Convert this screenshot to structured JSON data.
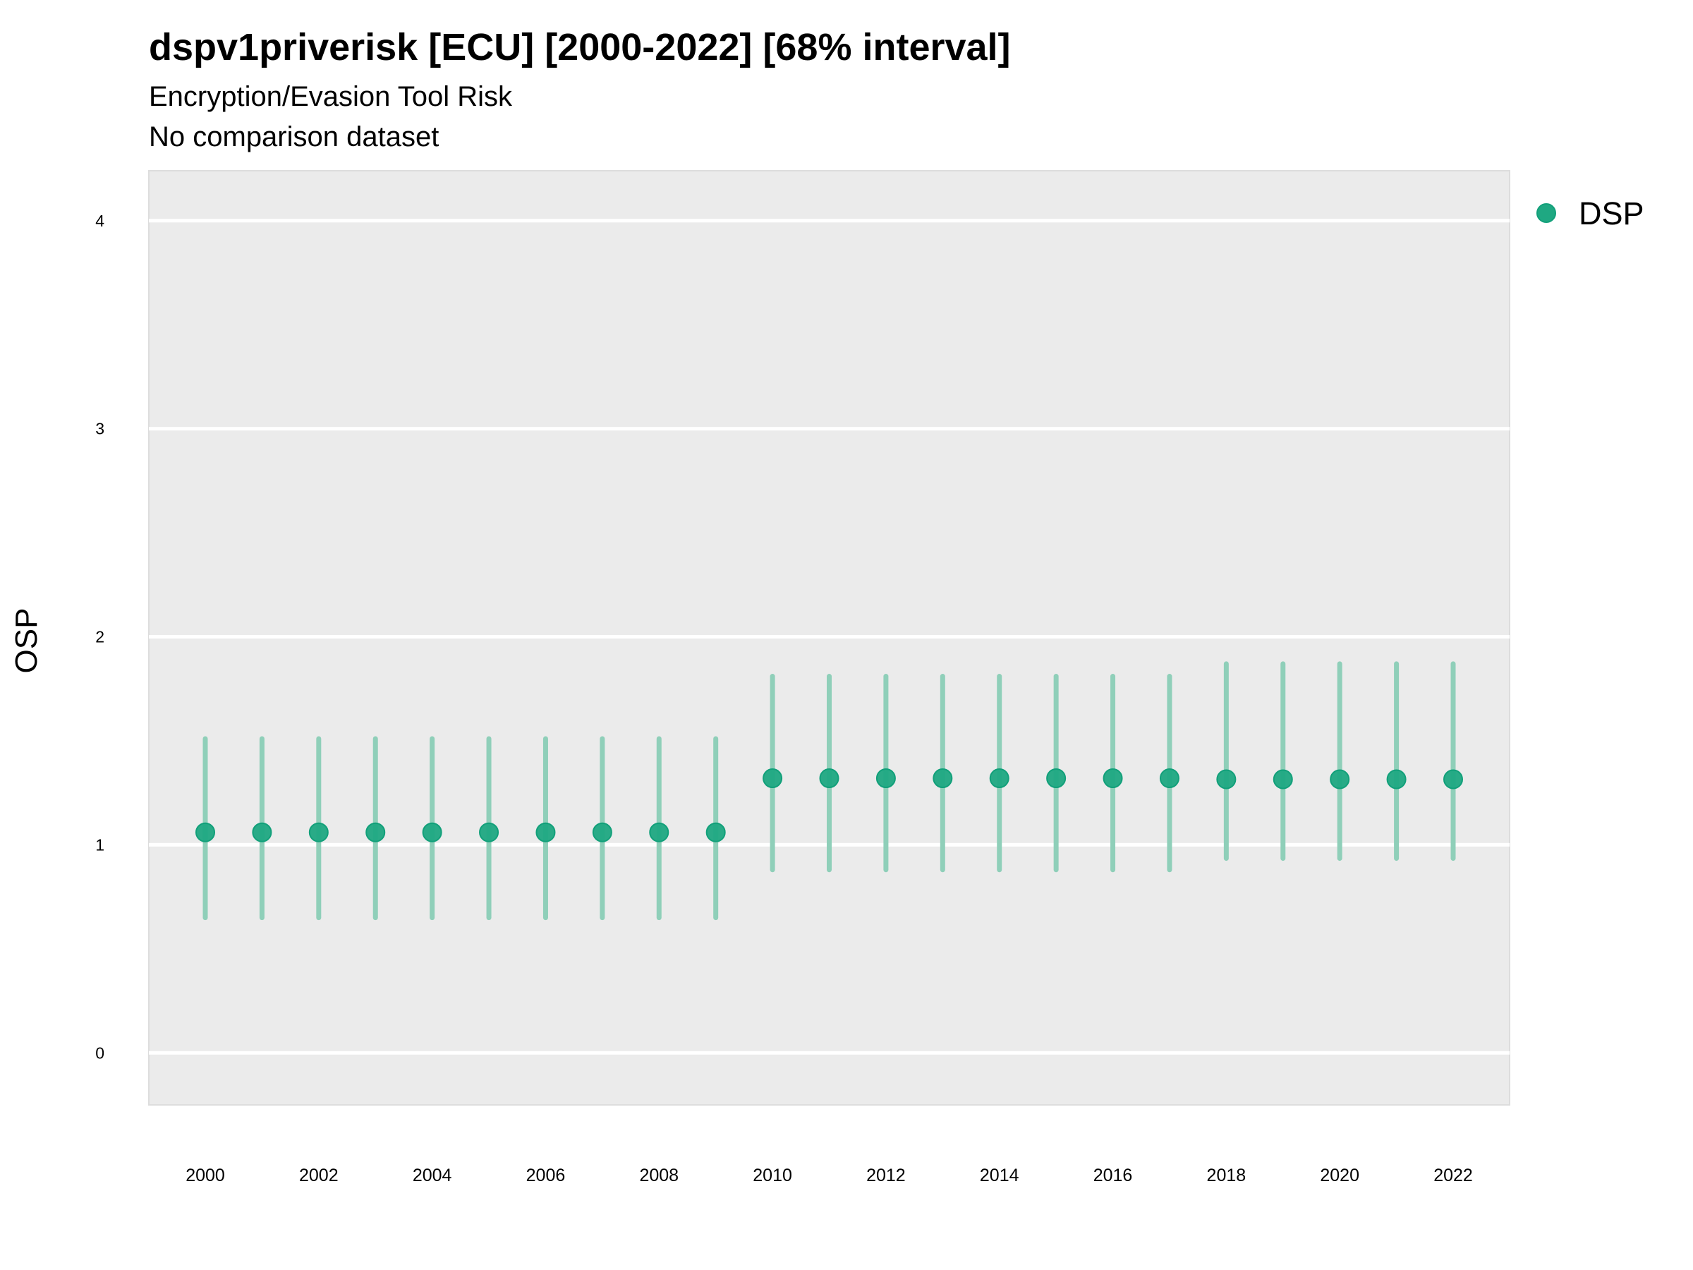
{
  "chart_data": {
    "type": "scatter",
    "title": "dspv1priverisk [ECU] [2000-2022] [68% interval]",
    "subtitle": [
      "Encryption/Evasion Tool Risk",
      "No comparison dataset"
    ],
    "xlabel": "",
    "ylabel": "OSP",
    "xlim": [
      1999,
      2023
    ],
    "ylim": [
      -0.25,
      4.24
    ],
    "yticks": [
      0,
      1,
      2,
      3,
      4
    ],
    "xticks": [
      2000,
      2002,
      2004,
      2006,
      2008,
      2010,
      2012,
      2014,
      2016,
      2018,
      2020,
      2022
    ],
    "grid": true,
    "legend_position": "right",
    "colors": {
      "point": "#1fa882",
      "interval": "#8fcfb9",
      "panel": "#ebebeb",
      "grid": "#ffffff"
    },
    "series": [
      {
        "name": "DSP",
        "x": [
          2000,
          2001,
          2002,
          2003,
          2004,
          2005,
          2006,
          2007,
          2008,
          2009,
          2010,
          2011,
          2012,
          2013,
          2014,
          2015,
          2016,
          2017,
          2018,
          2019,
          2020,
          2021,
          2022
        ],
        "y": [
          1.06,
          1.06,
          1.06,
          1.06,
          1.06,
          1.06,
          1.06,
          1.06,
          1.06,
          1.06,
          1.32,
          1.32,
          1.32,
          1.32,
          1.32,
          1.32,
          1.32,
          1.32,
          1.315,
          1.315,
          1.315,
          1.315,
          1.315
        ],
        "lower": [
          0.65,
          0.65,
          0.65,
          0.65,
          0.65,
          0.65,
          0.65,
          0.65,
          0.65,
          0.65,
          0.88,
          0.88,
          0.88,
          0.88,
          0.88,
          0.88,
          0.88,
          0.88,
          0.935,
          0.935,
          0.935,
          0.935,
          0.935
        ],
        "upper": [
          1.51,
          1.51,
          1.51,
          1.51,
          1.51,
          1.51,
          1.51,
          1.51,
          1.51,
          1.51,
          1.81,
          1.81,
          1.81,
          1.81,
          1.81,
          1.81,
          1.81,
          1.81,
          1.87,
          1.87,
          1.87,
          1.87,
          1.87
        ]
      }
    ]
  }
}
